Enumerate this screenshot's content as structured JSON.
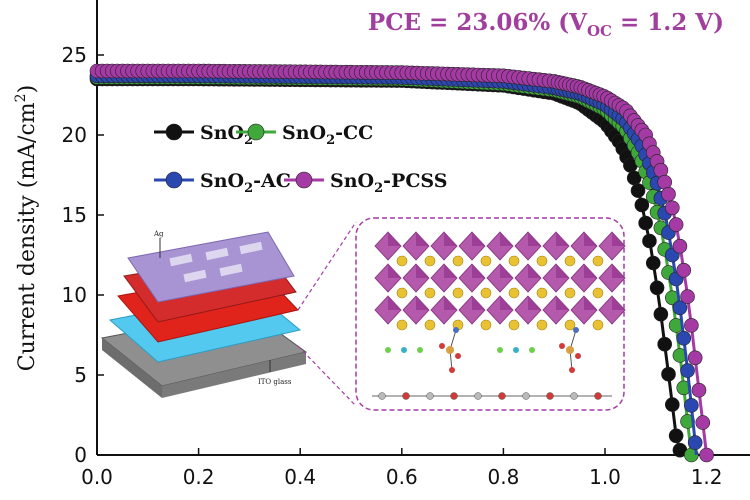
{
  "annotation": "PCE = 23.06% (V",
  "annotation_sub": "OC",
  "annotation_end": " = 1.2 V)",
  "ylabel": "Current density (mA/cm",
  "ylabel_sup": "2",
  "ylabel_end": ")",
  "inset": {
    "ag": "Ag",
    "ito": "ITO glass"
  },
  "colors": {
    "SnO2": "#111111",
    "SnO2-CC": "#3ea83b",
    "SnO2-AC": "#2b47b0",
    "SnO2-PCSS": "#a53aa5"
  },
  "chart_data": {
    "type": "line",
    "title": "",
    "xlabel": "",
    "ylabel": "Current density (mA/cm2)",
    "xlim": [
      0.0,
      1.3
    ],
    "ylim": [
      0,
      29
    ],
    "xticks": [
      "0.0",
      "0.2",
      "0.4",
      "0.6",
      "0.8",
      "1.0",
      "1.2"
    ],
    "yticks": [
      "0",
      "5",
      "10",
      "15",
      "20",
      "25"
    ],
    "legend_position": "upper-left",
    "series": [
      {
        "name": "SnO2",
        "label_main": "SnO",
        "label_sub": "2",
        "label_rest": "",
        "x": [
          0.0,
          0.2,
          0.4,
          0.6,
          0.8,
          0.9,
          0.95,
          1.0,
          1.03,
          1.05,
          1.07,
          1.09,
          1.1,
          1.11,
          1.12,
          1.13,
          1.14,
          1.15
        ],
        "y": [
          23.5,
          23.5,
          23.45,
          23.4,
          23.1,
          22.6,
          22.0,
          20.8,
          19.5,
          18.1,
          16.0,
          13.0,
          11.0,
          8.8,
          6.3,
          3.8,
          1.2,
          0.0
        ]
      },
      {
        "name": "SnO2-CC",
        "label_main": "SnO",
        "label_sub": "2",
        "label_rest": "-CC",
        "x": [
          0.0,
          0.2,
          0.4,
          0.6,
          0.8,
          0.9,
          0.95,
          1.0,
          1.04,
          1.07,
          1.09,
          1.11,
          1.12,
          1.13,
          1.14,
          1.15,
          1.16,
          1.17
        ],
        "y": [
          23.6,
          23.6,
          23.55,
          23.5,
          23.2,
          22.8,
          22.4,
          21.6,
          20.4,
          18.6,
          16.8,
          14.2,
          12.4,
          10.4,
          8.1,
          5.6,
          2.8,
          0.0
        ]
      },
      {
        "name": "SnO2-AC",
        "label_main": "SnO",
        "label_sub": "2",
        "label_rest": "-AC",
        "x": [
          0.0,
          0.2,
          0.4,
          0.6,
          0.8,
          0.9,
          0.95,
          1.0,
          1.04,
          1.07,
          1.1,
          1.12,
          1.13,
          1.14,
          1.15,
          1.16,
          1.17,
          1.18
        ],
        "y": [
          23.7,
          23.7,
          23.65,
          23.6,
          23.35,
          22.95,
          22.6,
          21.9,
          20.9,
          19.5,
          17.3,
          14.8,
          13.0,
          11.0,
          8.6,
          6.0,
          3.1,
          0.0
        ]
      },
      {
        "name": "SnO2-PCSS",
        "label_main": "SnO",
        "label_sub": "2",
        "label_rest": "-PCSS",
        "x": [
          0.0,
          0.2,
          0.4,
          0.6,
          0.8,
          0.9,
          0.95,
          1.0,
          1.04,
          1.08,
          1.11,
          1.13,
          1.14,
          1.15,
          1.16,
          1.17,
          1.18,
          1.19,
          1.2
        ],
        "y": [
          24.0,
          24.0,
          23.95,
          23.9,
          23.7,
          23.35,
          23.0,
          22.4,
          21.6,
          20.0,
          17.8,
          15.8,
          14.4,
          12.6,
          10.5,
          8.1,
          5.4,
          2.7,
          0.0
        ]
      }
    ]
  }
}
